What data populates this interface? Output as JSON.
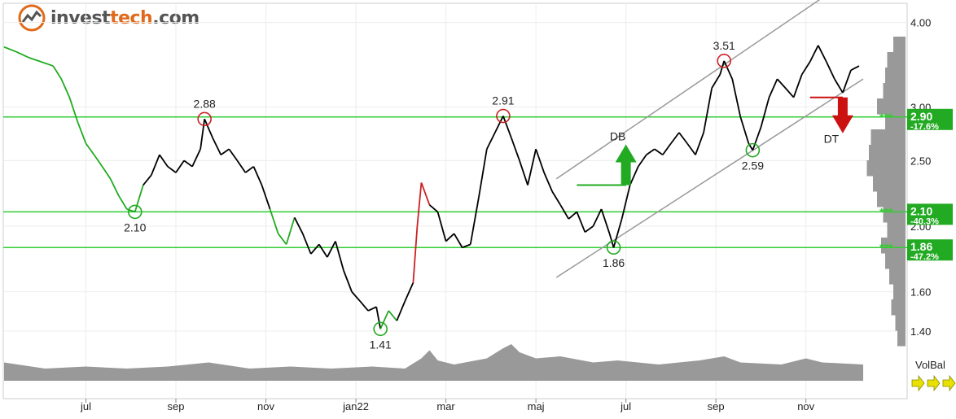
{
  "brand": {
    "part1": "invest",
    "part2": "tech",
    "part3": ".com",
    "logo_icon": "investtech-logo-icon"
  },
  "colors": {
    "price_line": "#000000",
    "uptrend": "#22aa22",
    "downtrend": "#cc2222",
    "sr_line": "#33cc33",
    "channel": "#999999",
    "volume": "#999999",
    "volbal_arrow": "#e8e000",
    "signal_up": "#22aa22",
    "signal_down": "#cc1111"
  },
  "volbal_label": "VolBal",
  "chart_data": {
    "type": "line",
    "scale": "log",
    "ylim": [
      1.35,
      4.2
    ],
    "y_ticks": [
      {
        "value": 4.0,
        "label": "4.00"
      },
      {
        "value": 3.0,
        "label": "3.00"
      },
      {
        "value": 2.5,
        "label": "2.50"
      },
      {
        "value": 2.0,
        "label": "2.00"
      },
      {
        "value": 1.6,
        "label": "1.60"
      },
      {
        "value": 1.4,
        "label": "1.40"
      }
    ],
    "x_ticks": [
      "jul",
      "sep",
      "nov",
      "jan22",
      "mar",
      "maj",
      "jul",
      "sep",
      "nov"
    ],
    "x_tick_index": [
      20,
      42,
      64,
      86,
      108,
      130,
      152,
      174,
      196
    ],
    "n_points": 210,
    "price": [
      [
        0,
        3.68
      ],
      [
        3,
        3.62
      ],
      [
        6,
        3.55
      ],
      [
        9,
        3.5
      ],
      [
        12,
        3.45
      ],
      [
        14,
        3.3
      ],
      [
        16,
        3.1
      ],
      [
        18,
        2.85
      ],
      [
        20,
        2.65
      ],
      [
        22,
        2.55
      ],
      [
        24,
        2.45
      ],
      [
        26,
        2.35
      ],
      [
        28,
        2.22
      ],
      [
        30,
        2.12
      ],
      [
        32,
        2.1
      ],
      [
        34,
        2.3
      ],
      [
        36,
        2.38
      ],
      [
        38,
        2.55
      ],
      [
        40,
        2.45
      ],
      [
        42,
        2.4
      ],
      [
        44,
        2.5
      ],
      [
        46,
        2.45
      ],
      [
        48,
        2.6
      ],
      [
        49,
        2.88
      ],
      [
        51,
        2.7
      ],
      [
        53,
        2.55
      ],
      [
        55,
        2.6
      ],
      [
        57,
        2.5
      ],
      [
        59,
        2.4
      ],
      [
        61,
        2.45
      ],
      [
        63,
        2.3
      ],
      [
        65,
        2.12
      ],
      [
        67,
        1.95
      ],
      [
        69,
        1.88
      ],
      [
        71,
        2.06
      ],
      [
        73,
        1.95
      ],
      [
        75,
        1.82
      ],
      [
        77,
        1.88
      ],
      [
        79,
        1.8
      ],
      [
        81,
        1.9
      ],
      [
        83,
        1.72
      ],
      [
        85,
        1.6
      ],
      [
        87,
        1.55
      ],
      [
        89,
        1.5
      ],
      [
        91,
        1.52
      ],
      [
        92,
        1.41
      ],
      [
        94,
        1.5
      ],
      [
        96,
        1.45
      ],
      [
        98,
        1.55
      ],
      [
        100,
        1.65
      ],
      [
        101,
        2.0
      ],
      [
        102,
        2.32
      ],
      [
        104,
        2.15
      ],
      [
        106,
        2.1
      ],
      [
        108,
        1.9
      ],
      [
        110,
        1.95
      ],
      [
        112,
        1.86
      ],
      [
        114,
        1.88
      ],
      [
        116,
        2.2
      ],
      [
        118,
        2.6
      ],
      [
        120,
        2.75
      ],
      [
        122,
        2.91
      ],
      [
        124,
        2.7
      ],
      [
        126,
        2.5
      ],
      [
        128,
        2.3
      ],
      [
        130,
        2.6
      ],
      [
        132,
        2.4
      ],
      [
        134,
        2.25
      ],
      [
        136,
        2.15
      ],
      [
        138,
        2.05
      ],
      [
        140,
        2.1
      ],
      [
        142,
        1.96
      ],
      [
        144,
        2.0
      ],
      [
        146,
        2.12
      ],
      [
        148,
        1.95
      ],
      [
        149,
        1.86
      ],
      [
        151,
        2.05
      ],
      [
        153,
        2.3
      ],
      [
        155,
        2.45
      ],
      [
        157,
        2.55
      ],
      [
        159,
        2.6
      ],
      [
        161,
        2.55
      ],
      [
        163,
        2.65
      ],
      [
        165,
        2.75
      ],
      [
        167,
        2.65
      ],
      [
        169,
        2.55
      ],
      [
        171,
        2.75
      ],
      [
        173,
        3.2
      ],
      [
        175,
        3.35
      ],
      [
        176,
        3.51
      ],
      [
        178,
        3.3
      ],
      [
        180,
        2.9
      ],
      [
        182,
        2.65
      ],
      [
        183,
        2.59
      ],
      [
        185,
        2.8
      ],
      [
        187,
        3.1
      ],
      [
        189,
        3.3
      ],
      [
        191,
        3.2
      ],
      [
        193,
        3.1
      ],
      [
        195,
        3.35
      ],
      [
        197,
        3.5
      ],
      [
        199,
        3.7
      ],
      [
        201,
        3.5
      ],
      [
        203,
        3.3
      ],
      [
        205,
        3.15
      ],
      [
        207,
        3.4
      ],
      [
        209,
        3.45
      ]
    ],
    "support_resistance": [
      {
        "value": 2.9,
        "label": "2.90",
        "pct": "-17.6%"
      },
      {
        "value": 2.1,
        "label": "2.10",
        "pct": "-40.3%"
      },
      {
        "value": 1.86,
        "label": "1.86",
        "pct": "-47.2%"
      }
    ],
    "pivots": [
      {
        "i": 32,
        "value": 2.1,
        "label": "2.10",
        "kind": "low"
      },
      {
        "i": 49,
        "value": 2.88,
        "label": "2.88",
        "kind": "high"
      },
      {
        "i": 92,
        "value": 1.41,
        "label": "1.41",
        "kind": "low"
      },
      {
        "i": 122,
        "value": 2.91,
        "label": "2.91",
        "kind": "high"
      },
      {
        "i": 149,
        "value": 1.86,
        "label": "1.86",
        "kind": "low"
      },
      {
        "i": 176,
        "value": 3.51,
        "label": "3.51",
        "kind": "high"
      },
      {
        "i": 183,
        "value": 2.59,
        "label": "2.59",
        "kind": "low"
      }
    ],
    "channel": {
      "lower": [
        [
          135,
          1.68
        ],
        [
          210,
          3.3
        ]
      ],
      "upper": [
        [
          135,
          2.35
        ],
        [
          200,
          4.35
        ]
      ]
    },
    "signals": [
      {
        "label": "DB",
        "dir": "up",
        "i": 152,
        "value": 2.3,
        "neck_from": 140
      },
      {
        "label": "DT",
        "dir": "down",
        "i": 205,
        "value": 3.1,
        "neck_from": 197
      }
    ],
    "volume": [
      [
        0,
        0.45
      ],
      [
        10,
        0.3
      ],
      [
        20,
        0.35
      ],
      [
        30,
        0.3
      ],
      [
        40,
        0.35
      ],
      [
        50,
        0.45
      ],
      [
        60,
        0.3
      ],
      [
        70,
        0.35
      ],
      [
        80,
        0.3
      ],
      [
        90,
        0.35
      ],
      [
        98,
        0.3
      ],
      [
        102,
        0.55
      ],
      [
        104,
        0.75
      ],
      [
        106,
        0.5
      ],
      [
        110,
        0.4
      ],
      [
        118,
        0.55
      ],
      [
        122,
        0.8
      ],
      [
        124,
        0.9
      ],
      [
        126,
        0.7
      ],
      [
        130,
        0.55
      ],
      [
        136,
        0.6
      ],
      [
        144,
        0.45
      ],
      [
        150,
        0.5
      ],
      [
        160,
        0.4
      ],
      [
        170,
        0.5
      ],
      [
        176,
        0.6
      ],
      [
        180,
        0.45
      ],
      [
        190,
        0.4
      ],
      [
        196,
        0.55
      ],
      [
        200,
        0.45
      ],
      [
        210,
        0.4
      ]
    ],
    "volume_profile": [
      0.3,
      0.45,
      0.5,
      0.55,
      0.7,
      0.5,
      0.85,
      0.9,
      0.95,
      0.8,
      0.7,
      0.55,
      0.45,
      0.6,
      0.5,
      0.4,
      0.3,
      0.35,
      0.25,
      0.2
    ]
  }
}
